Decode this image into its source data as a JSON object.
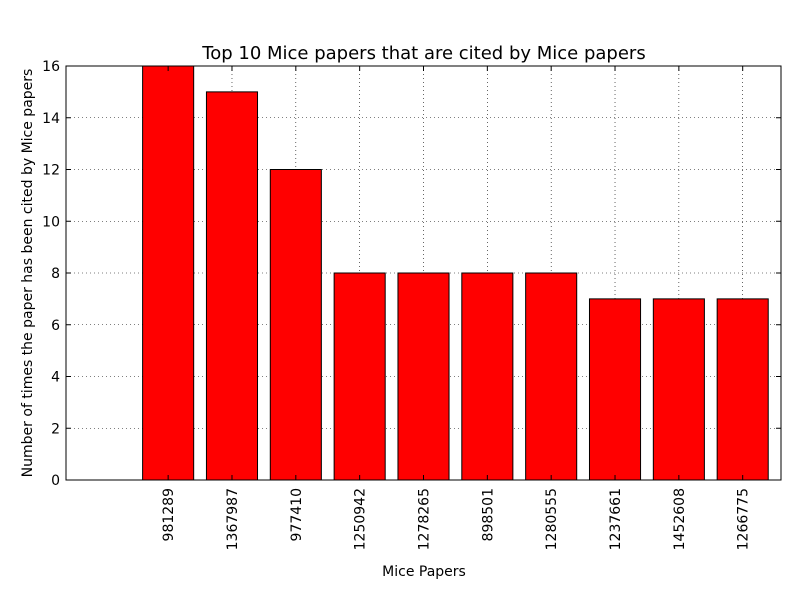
{
  "chart_data": {
    "type": "bar",
    "title": "Top 10 Mice papers that are cited by Mice papers",
    "xlabel": "Mice Papers",
    "ylabel": "Number of times the paper has been cited by Mice papers",
    "categories": [
      "981289",
      "1367987",
      "977410",
      "1250942",
      "1278265",
      "898501",
      "1280555",
      "1237661",
      "1452608",
      "1266775"
    ],
    "values": [
      16,
      15,
      12,
      8,
      8,
      8,
      8,
      7,
      7,
      7
    ],
    "ylim": [
      0,
      16
    ],
    "yticks": [
      "0",
      "2",
      "4",
      "6",
      "8",
      "10",
      "12",
      "14",
      "16"
    ],
    "grid": true,
    "bar_color": "#ff0000",
    "edge_color": "#000000"
  }
}
